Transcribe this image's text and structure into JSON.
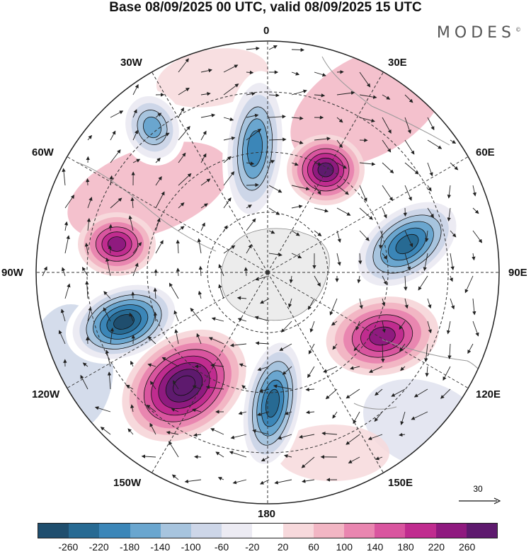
{
  "title": "Base 08/09/2025 00 UTC, valid 08/09/2025 15 UTC",
  "brand": "MODES",
  "brand_mark": "©",
  "longitudes": {
    "top": "0",
    "top_right": "30E",
    "right_upper": "60E",
    "right": "90E",
    "right_lower": "120E",
    "bottom_right": "150E",
    "bottom": "180",
    "bottom_left": "150W",
    "left_lower": "120W",
    "left": "90W",
    "left_upper": "60W",
    "top_left": "30W"
  },
  "vector_reference": {
    "label": "30",
    "icon": "arrow-right-icon"
  },
  "colorbar": {
    "colors": [
      "#1f4e6e",
      "#276a93",
      "#3b86b8",
      "#6aa6cf",
      "#a7c4de",
      "#cdd6e8",
      "#ecebf3",
      "#ffffff",
      "#f7d9dc",
      "#f2b6c4",
      "#e986b0",
      "#d9559f",
      "#c02c8f",
      "#8f1a7f",
      "#5e1a6e"
    ],
    "tick_labels": [
      "-260",
      "-220",
      "-180",
      "-140",
      "-100",
      "-60",
      "-20",
      "20",
      "60",
      "100",
      "140",
      "180",
      "220",
      "260"
    ]
  },
  "anomalies": [
    {
      "name": "trough-90W-110W",
      "value": -260
    },
    {
      "name": "ridge-130W-150W",
      "value": 260
    },
    {
      "name": "ridge-120E",
      "value": 200
    },
    {
      "name": "trough-80E",
      "value": -240
    },
    {
      "name": "trough-0-15E",
      "value": -200
    },
    {
      "name": "ridge-40E",
      "value": 220
    },
    {
      "name": "trough-170W",
      "value": -240
    },
    {
      "name": "ridge-80W",
      "value": 180
    },
    {
      "name": "trough-40W",
      "value": -140
    }
  ]
}
